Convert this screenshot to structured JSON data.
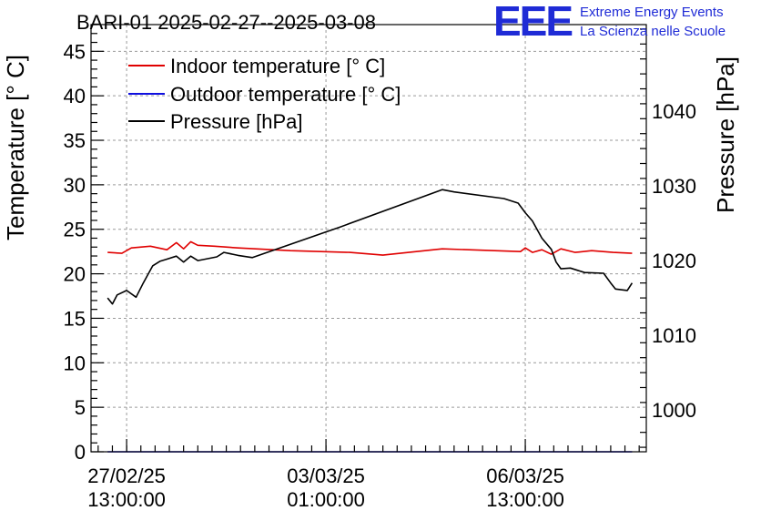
{
  "chart_data": {
    "type": "line",
    "title": "BARI-01 2025-02-27--2025-03-08",
    "ylabel": "Temperature [° C]",
    "y2label": "Pressure [hPa]",
    "ylim": [
      0,
      48
    ],
    "y2lim": [
      994.4,
      1051.6
    ],
    "xlim": [
      "2025-02-26T22:00:00",
      "2025-03-08T16:00:00"
    ],
    "x_ticks": [
      {
        "x": "2025-02-27T13:00:00",
        "date": "27/02/25",
        "time": "13:00:00"
      },
      {
        "x": "2025-03-03T01:00:00",
        "date": "03/03/25",
        "time": "01:00:00"
      },
      {
        "x": "2025-03-06T13:00:00",
        "date": "06/03/25",
        "time": "13:00:00"
      }
    ],
    "y_ticks": [
      0,
      5,
      10,
      15,
      20,
      25,
      30,
      35,
      40,
      45
    ],
    "y2_ticks": [
      1000,
      1010,
      1020,
      1030,
      1040
    ],
    "grid": true,
    "legend_position": "top-left",
    "series": [
      {
        "name": "Indoor temperature [° C]",
        "color": "#e00000",
        "axis": "left",
        "x": [
          "2025-02-27T05:00:00",
          "2025-02-27T11:00:00",
          "2025-02-27T15:00:00",
          "2025-02-27T23:00:00",
          "2025-02-28T06:00:00",
          "2025-02-28T10:00:00",
          "2025-02-28T13:00:00",
          "2025-02-28T16:00:00",
          "2025-02-28T19:00:00",
          "2025-03-01T02:00:00",
          "2025-03-01T12:00:00",
          "2025-03-02T10:00:00",
          "2025-03-03T11:00:00",
          "2025-03-04T01:00:00",
          "2025-03-05T02:00:00",
          "2025-03-06T11:00:00",
          "2025-03-06T13:00:00",
          "2025-03-06T16:00:00",
          "2025-03-06T20:00:00",
          "2025-03-07T00:00:00",
          "2025-03-07T04:00:00",
          "2025-03-07T10:00:00",
          "2025-03-07T17:00:00",
          "2025-03-08T02:00:00",
          "2025-03-08T10:00:00"
        ],
        "y": [
          22.4,
          22.3,
          22.9,
          23.1,
          22.7,
          23.5,
          22.8,
          23.6,
          23.2,
          23.1,
          22.9,
          22.6,
          22.4,
          22.1,
          22.8,
          22.5,
          22.9,
          22.4,
          22.7,
          22.2,
          22.8,
          22.4,
          22.6,
          22.4,
          22.3
        ]
      },
      {
        "name": "Outdoor temperature [° C]",
        "color": "#1010e0",
        "axis": "left",
        "x": [
          "2025-02-27T05:00:00",
          "2025-03-08T10:00:00"
        ],
        "y": [
          0,
          0
        ]
      },
      {
        "name": "Pressure [hPa]",
        "color": "#000000",
        "axis": "right",
        "x": [
          "2025-02-27T05:00:00",
          "2025-02-27T07:00:00",
          "2025-02-27T09:00:00",
          "2025-02-27T13:00:00",
          "2025-02-27T17:00:00",
          "2025-02-27T20:00:00",
          "2025-02-28T00:00:00",
          "2025-02-28T03:00:00",
          "2025-02-28T06:00:00",
          "2025-02-28T10:00:00",
          "2025-02-28T13:00:00",
          "2025-02-28T16:00:00",
          "2025-02-28T19:00:00",
          "2025-03-01T03:00:00",
          "2025-03-01T06:00:00",
          "2025-03-01T12:00:00",
          "2025-03-01T18:00:00",
          "2025-03-03T07:00:00",
          "2025-03-05T02:00:00",
          "2025-03-05T07:00:00",
          "2025-03-06T04:00:00",
          "2025-03-06T10:00:00",
          "2025-03-06T13:00:00",
          "2025-03-06T16:00:00",
          "2025-03-06T20:00:00",
          "2025-03-07T00:00:00",
          "2025-03-07T02:00:00",
          "2025-03-07T04:00:00",
          "2025-03-07T08:00:00",
          "2025-03-07T14:00:00",
          "2025-03-07T22:00:00",
          "2025-03-08T01:00:00",
          "2025-03-08T03:00:00",
          "2025-03-08T08:00:00",
          "2025-03-08T10:00:00"
        ],
        "y": [
          1015.0,
          1014.2,
          1015.4,
          1016.0,
          1015.1,
          1017.0,
          1019.3,
          1019.9,
          1020.2,
          1020.6,
          1019.8,
          1020.6,
          1020.0,
          1020.5,
          1021.1,
          1020.7,
          1020.4,
          1024.5,
          1029.5,
          1029.2,
          1028.3,
          1027.7,
          1026.4,
          1025.3,
          1023.0,
          1021.5,
          1019.8,
          1018.9,
          1019.0,
          1018.4,
          1018.3,
          1017.0,
          1016.2,
          1016.0,
          1017.0
        ]
      }
    ]
  },
  "logo": {
    "mark": "EEE",
    "line1": "Extreme Energy Events",
    "line2": "La Scienza nelle Scuole"
  }
}
